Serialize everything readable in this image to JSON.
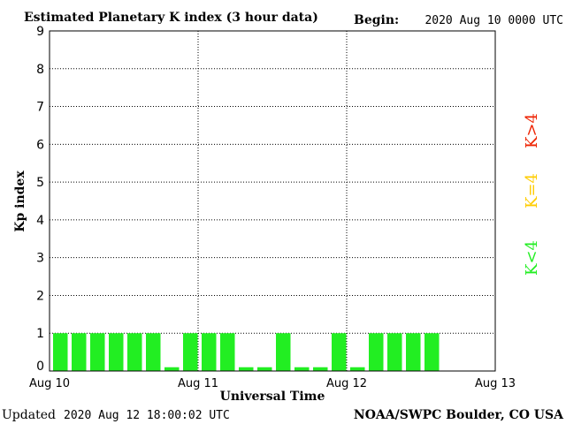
{
  "header": {
    "title": "Estimated Planetary K index (3 hour data)",
    "begin_label": "Begin:",
    "begin_value": "2020 Aug 10 0000 UTC"
  },
  "footer": {
    "updated_label": "Updated",
    "updated_value": "2020 Aug 12 18:00:02 UTC",
    "source": "NOAA/SWPC Boulder, CO USA"
  },
  "legend": {
    "high": "K>4",
    "mid": "K=4",
    "low": "K<4"
  },
  "colors": {
    "low": "#22ee22",
    "mid": "#ffcc00",
    "high": "#ee2200"
  },
  "chart_data": {
    "type": "bar",
    "title": "Estimated Planetary K index (3 hour data)",
    "xlabel": "Universal Time",
    "ylabel": "Kp index",
    "ylim": [
      0,
      9
    ],
    "yticks": [
      "0",
      "1",
      "2",
      "3",
      "4",
      "5",
      "6",
      "7",
      "8",
      "9"
    ],
    "xticks": [
      "Aug 10",
      "Aug 11",
      "Aug 12",
      "Aug 13"
    ],
    "grid": true,
    "interval_hours": 3,
    "values": [
      1,
      1,
      1,
      1,
      1,
      1,
      0.1,
      1,
      1,
      1,
      0.1,
      0.1,
      1,
      0.1,
      0.1,
      1,
      0.1,
      1,
      1,
      1,
      1
    ]
  }
}
